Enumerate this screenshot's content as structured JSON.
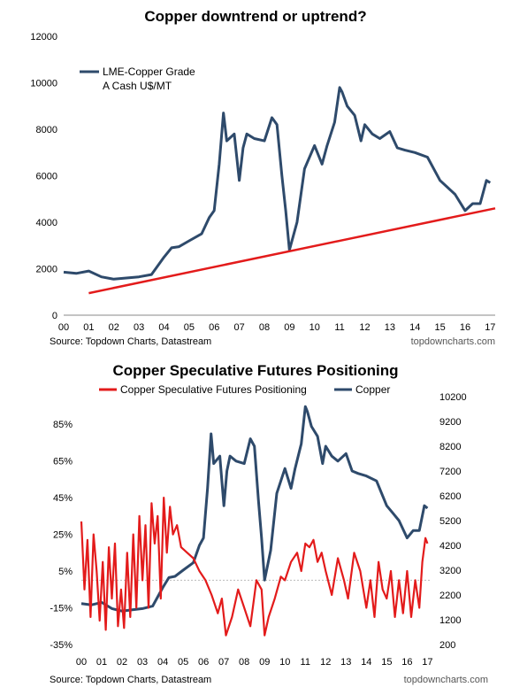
{
  "chart_data": [
    {
      "type": "line",
      "title": "Copper downtrend or uptrend?",
      "xlabel": "",
      "ylabel": "",
      "x_ticks": [
        "00",
        "01",
        "02",
        "03",
        "04",
        "05",
        "06",
        "07",
        "08",
        "09",
        "10",
        "11",
        "12",
        "13",
        "14",
        "15",
        "16",
        "17"
      ],
      "y_ticks": [
        "0",
        "2000",
        "4000",
        "6000",
        "8000",
        "10000",
        "12000"
      ],
      "ylim": [
        0,
        12000
      ],
      "xlim": [
        2000,
        2017.2
      ],
      "grid": false,
      "legend_position": "top-left",
      "legend": {
        "line1": "LME-Copper Grade",
        "line2": "A Cash U$/MT"
      },
      "series": [
        {
          "name": "LME-Copper Grade A Cash U$/MT",
          "color": "#2e4a6b",
          "x": [
            2000.0,
            2000.5,
            2001.0,
            2001.5,
            2002.0,
            2002.5,
            2003.0,
            2003.5,
            2004.0,
            2004.3,
            2004.6,
            2005.0,
            2005.5,
            2005.8,
            2006.0,
            2006.2,
            2006.37,
            2006.5,
            2006.8,
            2007.0,
            2007.15,
            2007.3,
            2007.6,
            2008.0,
            2008.3,
            2008.5,
            2008.7,
            2008.85,
            2009.0,
            2009.3,
            2009.6,
            2010.0,
            2010.3,
            2010.5,
            2010.8,
            2011.0,
            2011.1,
            2011.3,
            2011.6,
            2011.85,
            2012.0,
            2012.3,
            2012.6,
            2013.0,
            2013.3,
            2013.6,
            2014.0,
            2014.5,
            2015.0,
            2015.3,
            2015.6,
            2016.0,
            2016.3,
            2016.6,
            2016.85,
            2017.0
          ],
          "y": [
            1850,
            1800,
            1900,
            1650,
            1550,
            1600,
            1650,
            1750,
            2500,
            2900,
            2950,
            3200,
            3500,
            4200,
            4500,
            6500,
            8700,
            7500,
            7800,
            5800,
            7200,
            7800,
            7600,
            7500,
            8500,
            8200,
            6000,
            4500,
            2800,
            4000,
            6300,
            7300,
            6500,
            7300,
            8300,
            9800,
            9600,
            9000,
            8600,
            7500,
            8200,
            7800,
            7600,
            7900,
            7200,
            7100,
            7000,
            6800,
            5800,
            5500,
            5200,
            4500,
            4800,
            4800,
            5800,
            5700
          ]
        },
        {
          "name": "Trend line",
          "color": "#e31b1b",
          "x": [
            2001.0,
            2017.2
          ],
          "y": [
            950,
            4600
          ]
        }
      ],
      "source": "Source: Topdown Charts, Datastream",
      "brand": "topdowncharts.com"
    },
    {
      "type": "line",
      "title": "Copper Speculative Futures Positioning",
      "xlabel": "",
      "ylabel": "",
      "x_ticks": [
        "00",
        "01",
        "02",
        "03",
        "04",
        "05",
        "06",
        "07",
        "08",
        "09",
        "10",
        "11",
        "12",
        "13",
        "14",
        "15",
        "16",
        "17"
      ],
      "y_ticks_left": [
        "-35%",
        "-15%",
        "5%",
        "25%",
        "45%",
        "65%",
        "85%"
      ],
      "y_ticks_right": [
        "200",
        "1200",
        "2200",
        "3200",
        "4200",
        "5200",
        "6200",
        "7200",
        "8200",
        "9200",
        "10200"
      ],
      "ylim_left": [
        -35,
        100
      ],
      "ylim_right": [
        200,
        10200
      ],
      "xlim": [
        2000,
        2017.2
      ],
      "grid": false,
      "legend_position": "top",
      "series": [
        {
          "name": "Copper Speculative Futures Positioning",
          "axis": "left",
          "color": "#e31b1b",
          "x": [
            2000.0,
            2000.15,
            2000.3,
            2000.45,
            2000.6,
            2000.75,
            2000.9,
            2001.05,
            2001.2,
            2001.35,
            2001.5,
            2001.65,
            2001.8,
            2001.95,
            2002.1,
            2002.25,
            2002.4,
            2002.55,
            2002.7,
            2002.85,
            2003.0,
            2003.15,
            2003.3,
            2003.45,
            2003.6,
            2003.75,
            2003.9,
            2004.05,
            2004.2,
            2004.35,
            2004.5,
            2004.7,
            2004.9,
            2005.2,
            2005.5,
            2005.8,
            2006.1,
            2006.4,
            2006.7,
            2006.9,
            2007.1,
            2007.4,
            2007.7,
            2008.0,
            2008.3,
            2008.6,
            2008.85,
            2009.0,
            2009.2,
            2009.5,
            2009.8,
            2010.0,
            2010.3,
            2010.6,
            2010.8,
            2011.0,
            2011.2,
            2011.4,
            2011.6,
            2011.8,
            2012.0,
            2012.3,
            2012.6,
            2012.9,
            2013.1,
            2013.4,
            2013.7,
            2014.0,
            2014.2,
            2014.4,
            2014.6,
            2014.8,
            2015.0,
            2015.2,
            2015.4,
            2015.6,
            2015.8,
            2016.0,
            2016.2,
            2016.4,
            2016.6,
            2016.75,
            2016.9,
            2017.0
          ],
          "y": [
            32,
            -5,
            22,
            -20,
            25,
            5,
            -22,
            10,
            -27,
            18,
            -10,
            20,
            -25,
            -5,
            -26,
            15,
            -20,
            25,
            -15,
            35,
            0,
            30,
            -15,
            42,
            20,
            35,
            -10,
            45,
            15,
            40,
            25,
            30,
            18,
            15,
            12,
            5,
            0,
            -8,
            -18,
            -10,
            -30,
            -20,
            -5,
            -15,
            -25,
            0,
            -5,
            -30,
            -20,
            -10,
            2,
            0,
            10,
            15,
            5,
            20,
            18,
            22,
            10,
            15,
            5,
            -8,
            12,
            0,
            -10,
            15,
            5,
            -15,
            0,
            -20,
            10,
            -5,
            -10,
            5,
            -20,
            0,
            -18,
            5,
            -20,
            0,
            -15,
            10,
            23,
            20
          ]
        },
        {
          "name": "Copper",
          "axis": "right",
          "color": "#2e4a6b",
          "x": [
            2000.0,
            2000.5,
            2001.0,
            2001.5,
            2002.0,
            2002.5,
            2003.0,
            2003.5,
            2004.0,
            2004.3,
            2004.6,
            2005.0,
            2005.5,
            2005.8,
            2006.0,
            2006.2,
            2006.37,
            2006.5,
            2006.8,
            2007.0,
            2007.15,
            2007.3,
            2007.6,
            2008.0,
            2008.3,
            2008.5,
            2008.7,
            2008.85,
            2009.0,
            2009.3,
            2009.6,
            2010.0,
            2010.3,
            2010.5,
            2010.8,
            2011.0,
            2011.1,
            2011.3,
            2011.6,
            2011.85,
            2012.0,
            2012.3,
            2012.6,
            2013.0,
            2013.3,
            2013.6,
            2014.0,
            2014.5,
            2015.0,
            2015.3,
            2015.6,
            2016.0,
            2016.3,
            2016.6,
            2016.85,
            2017.0
          ],
          "y": [
            1850,
            1800,
            1900,
            1650,
            1550,
            1600,
            1650,
            1750,
            2500,
            2900,
            2950,
            3200,
            3500,
            4200,
            4500,
            6500,
            8700,
            7500,
            7800,
            5800,
            7200,
            7800,
            7600,
            7500,
            8500,
            8200,
            6000,
            4500,
            2800,
            4000,
            6300,
            7300,
            6500,
            7300,
            8300,
            9800,
            9600,
            9000,
            8600,
            7500,
            8200,
            7800,
            7600,
            7900,
            7200,
            7100,
            7000,
            6800,
            5800,
            5500,
            5200,
            4500,
            4800,
            4800,
            5800,
            5700
          ]
        }
      ],
      "source": "Source: Topdown Charts, Datastream",
      "brand": "topdowncharts.com"
    }
  ]
}
